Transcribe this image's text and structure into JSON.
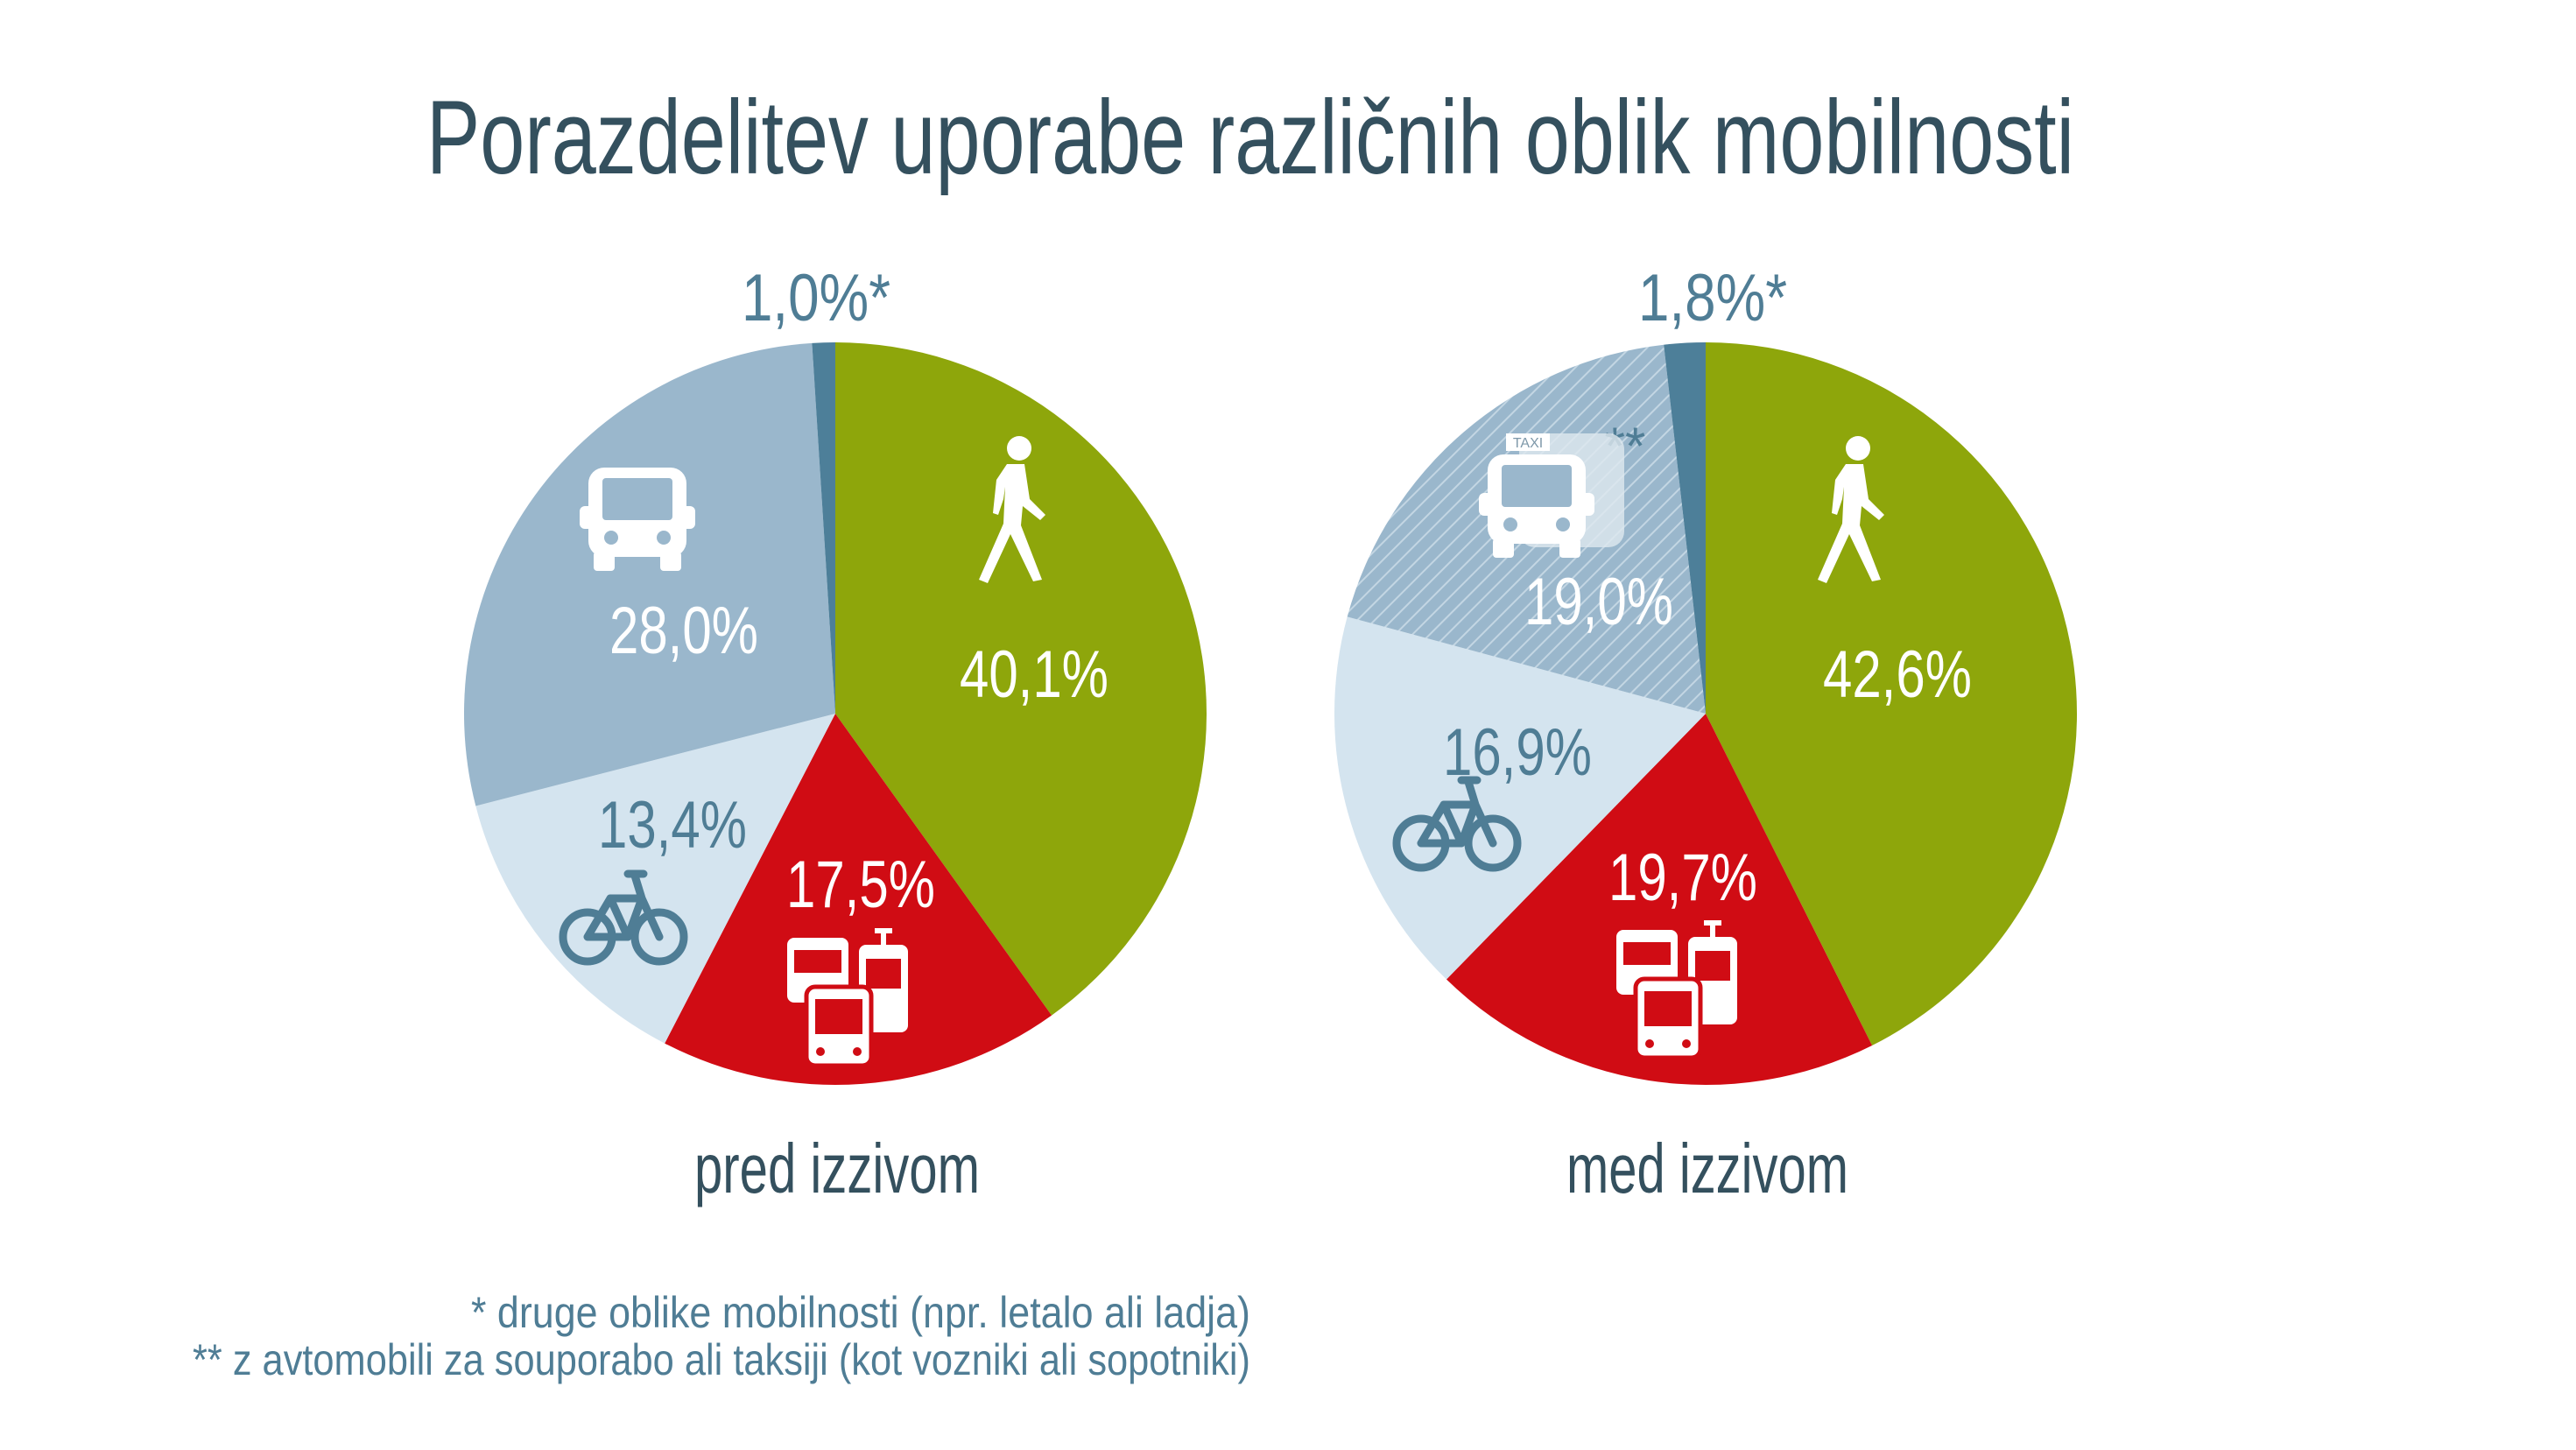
{
  "title": "Porazdelitev uporabe različnih oblik mobilnosti",
  "colors": {
    "walk": "#8ea60b",
    "public_transport": "#d00c14",
    "bike": "#d4e4ef",
    "car": "#9ab7cc",
    "other": "#4d7f99",
    "title": "#34505e",
    "label": "#4f7d95"
  },
  "chart_data": [
    {
      "type": "pie",
      "caption": "pred izzivom",
      "start": "12 o'clock, clockwise",
      "slices": [
        {
          "category": "walk",
          "icon": "walking-person-icon",
          "value": 40.1,
          "label": "40,1%"
        },
        {
          "category": "public_transport",
          "icon": "bus-tram-icon",
          "value": 17.5,
          "label": "17,5%"
        },
        {
          "category": "bike",
          "icon": "bicycle-icon",
          "value": 13.4,
          "label": "13,4%"
        },
        {
          "category": "car",
          "icon": "car-icon",
          "value": 28.0,
          "label": "28,0%"
        },
        {
          "category": "other",
          "value": 1.0,
          "label": "1,0%*"
        }
      ]
    },
    {
      "type": "pie",
      "caption": "med izzivom",
      "start": "12 o'clock, clockwise",
      "slices": [
        {
          "category": "walk",
          "icon": "walking-person-icon",
          "value": 42.6,
          "label": "42,6%"
        },
        {
          "category": "public_transport",
          "icon": "bus-tram-icon",
          "value": 19.7,
          "label": "19,7%"
        },
        {
          "category": "bike",
          "icon": "bicycle-icon",
          "value": 16.9,
          "label": "16,9%"
        },
        {
          "category": "car",
          "icon": "taxi-shared-car-icon",
          "value": 19.0,
          "label": "19,0%",
          "pattern": "hatched",
          "note_mark": "**"
        },
        {
          "category": "other",
          "value": 1.8,
          "label": "1,8%*"
        }
      ]
    }
  ],
  "icon_text": {
    "taxi": "TAXI"
  },
  "footnotes": [
    "*  druge oblike mobilnosti (npr. letalo ali ladja)",
    "** z avtomobili za souporabo ali taksiji (kot vozniki ali sopotniki)"
  ]
}
